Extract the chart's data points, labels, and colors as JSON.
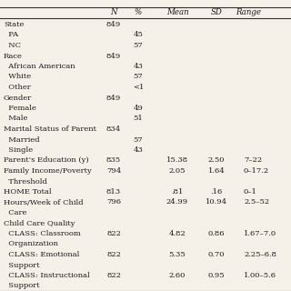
{
  "columns": [
    "N",
    "%",
    "Mean",
    "SD",
    "Range"
  ],
  "rows": [
    {
      "label": "State",
      "indent": 0,
      "N": "849",
      "pct": "",
      "mean": "",
      "sd": "",
      "range": ""
    },
    {
      "label": "  PA",
      "indent": 0,
      "N": "",
      "pct": "45",
      "mean": "",
      "sd": "",
      "range": ""
    },
    {
      "label": "  NC",
      "indent": 0,
      "N": "",
      "pct": "57",
      "mean": "",
      "sd": "",
      "range": ""
    },
    {
      "label": "Race",
      "indent": 0,
      "N": "849",
      "pct": "",
      "mean": "",
      "sd": "",
      "range": ""
    },
    {
      "label": "  African American",
      "indent": 0,
      "N": "",
      "pct": "43",
      "mean": "",
      "sd": "",
      "range": ""
    },
    {
      "label": "  White",
      "indent": 0,
      "N": "",
      "pct": "57",
      "mean": "",
      "sd": "",
      "range": ""
    },
    {
      "label": "  Other",
      "indent": 0,
      "N": "",
      "pct": "<1",
      "mean": "",
      "sd": "",
      "range": ""
    },
    {
      "label": "Gender",
      "indent": 0,
      "N": "849",
      "pct": "",
      "mean": "",
      "sd": "",
      "range": ""
    },
    {
      "label": "  Female",
      "indent": 0,
      "N": "",
      "pct": "49",
      "mean": "",
      "sd": "",
      "range": ""
    },
    {
      "label": "  Male",
      "indent": 0,
      "N": "",
      "pct": "51",
      "mean": "",
      "sd": "",
      "range": ""
    },
    {
      "label": "Marital Status of Parent",
      "indent": 0,
      "N": "834",
      "pct": "",
      "mean": "",
      "sd": "",
      "range": ""
    },
    {
      "label": "  Married",
      "indent": 0,
      "N": "",
      "pct": "57",
      "mean": "",
      "sd": "",
      "range": ""
    },
    {
      "label": "  Single",
      "indent": 0,
      "N": "",
      "pct": "43",
      "mean": "",
      "sd": "",
      "range": ""
    },
    {
      "label": "Parent's Education (y)",
      "indent": 0,
      "N": "835",
      "pct": "",
      "mean": "15.38",
      "sd": "2.50",
      "range": "7–22"
    },
    {
      "label": "Family Income/Poverty",
      "indent": 0,
      "N": "794",
      "pct": "",
      "mean": "2.05",
      "sd": "1.64",
      "range": "0–17.2"
    },
    {
      "label": "  Threshold",
      "indent": 0,
      "N": "",
      "pct": "",
      "mean": "",
      "sd": "",
      "range": ""
    },
    {
      "label": "HOME Total",
      "indent": 0,
      "N": "813",
      "pct": "",
      "mean": ".81",
      "sd": ".16",
      "range": "0–1"
    },
    {
      "label": "Hours/Week of Child",
      "indent": 0,
      "N": "796",
      "pct": "",
      "mean": "24.99",
      "sd": "10.94",
      "range": "2.5–52"
    },
    {
      "label": "  Care",
      "indent": 0,
      "N": "",
      "pct": "",
      "mean": "",
      "sd": "",
      "range": ""
    },
    {
      "label": "Child Care Quality",
      "indent": 0,
      "N": "",
      "pct": "",
      "mean": "",
      "sd": "",
      "range": ""
    },
    {
      "label": "  CLASS: Classroom",
      "indent": 0,
      "N": "822",
      "pct": "",
      "mean": "4.82",
      "sd": "0.86",
      "range": "1.67–7.0"
    },
    {
      "label": "  Organization",
      "indent": 0,
      "N": "",
      "pct": "",
      "mean": "",
      "sd": "",
      "range": ""
    },
    {
      "label": "  CLASS: Emotional",
      "indent": 0,
      "N": "822",
      "pct": "",
      "mean": "5.35",
      "sd": "0.70",
      "range": "2.25–6.8"
    },
    {
      "label": "  Support",
      "indent": 0,
      "N": "",
      "pct": "",
      "mean": "",
      "sd": "",
      "range": ""
    },
    {
      "label": "  CLASS: Instructional",
      "indent": 0,
      "N": "822",
      "pct": "",
      "mean": "2.60",
      "sd": "0.95",
      "range": "1.00–5.6"
    },
    {
      "label": "  Support",
      "indent": 0,
      "N": "",
      "pct": "",
      "mean": "",
      "sd": "",
      "range": ""
    }
  ],
  "bg_color": "#f5f0e8",
  "text_color": "#1a1a1a",
  "line_color": "#333333",
  "font_size": 6.0,
  "header_font_size": 6.2
}
